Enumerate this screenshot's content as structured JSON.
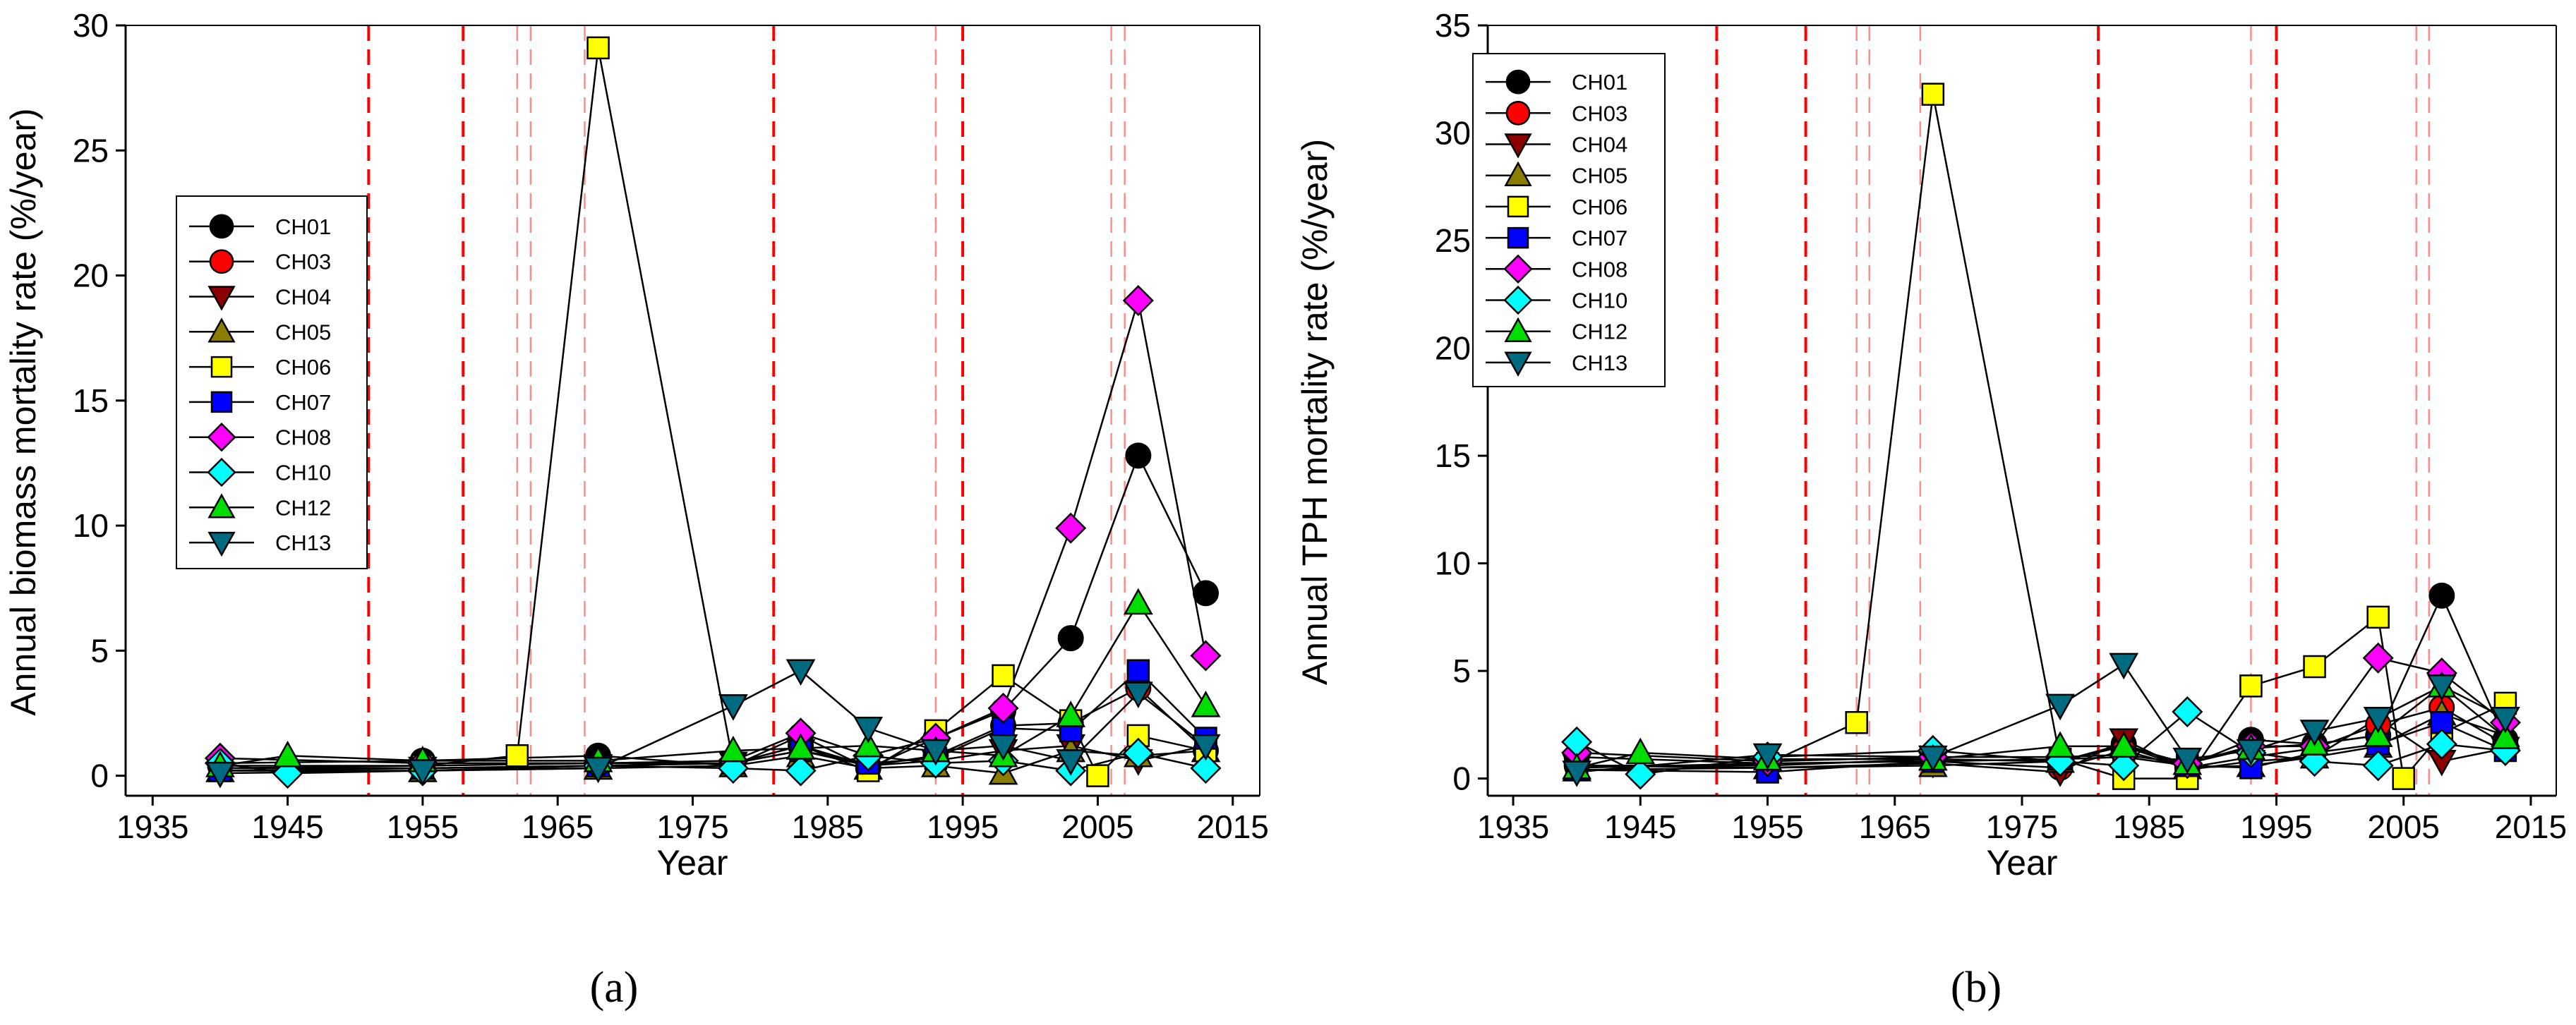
{
  "panel_labels": [
    "(a)",
    "(b)"
  ],
  "colors": {
    "CH01": "#000000",
    "CH03": "#ff0000",
    "CH04": "#8b0000",
    "CH05": "#8b7d00",
    "CH06": "#ffff00",
    "CH07": "#0000ff",
    "CH08": "#ff00ff",
    "CH10": "#00ffff",
    "CH12": "#00dd00",
    "CH13": "#006b80",
    "event_line": "#ff0000"
  },
  "markers": {
    "CH01": "circle",
    "CH03": "circle",
    "CH04": "triangle-down",
    "CH05": "triangle-up",
    "CH06": "square",
    "CH07": "square",
    "CH08": "diamond",
    "CH10": "diamond",
    "CH12": "triangle-up",
    "CH13": "triangle-down"
  },
  "chart_data": [
    {
      "type": "line",
      "title": "",
      "xlabel": "Year",
      "ylabel": "Annual biomass mortality rate (%/year)",
      "xlim": [
        1933,
        2017
      ],
      "ylim": [
        -0.8,
        30
      ],
      "xticks": [
        1935,
        1945,
        1955,
        1965,
        1975,
        1985,
        1995,
        2005,
        2015
      ],
      "yticks": [
        0,
        5,
        10,
        15,
        20,
        25,
        30
      ],
      "legend_position": "left",
      "grid": false,
      "vertical_lines": [
        {
          "x": 1951,
          "style": "dark"
        },
        {
          "x": 1958,
          "style": "dark"
        },
        {
          "x": 1962,
          "style": "light"
        },
        {
          "x": 1963,
          "style": "light"
        },
        {
          "x": 1967,
          "style": "light"
        },
        {
          "x": 1981,
          "style": "dark"
        },
        {
          "x": 1993,
          "style": "light"
        },
        {
          "x": 1995,
          "style": "dark"
        },
        {
          "x": 2006,
          "style": "light"
        },
        {
          "x": 2007,
          "style": "light"
        }
      ],
      "series": [
        {
          "name": "CH01",
          "x": [
            1940,
            1955,
            1968,
            1978,
            1983,
            1988,
            1993,
            1998,
            2003,
            2008,
            2013
          ],
          "y": [
            0.5,
            0.6,
            0.8,
            0.4,
            1.6,
            0.3,
            1.5,
            2.6,
            5.5,
            12.8,
            7.3
          ]
        },
        {
          "name": "CH03",
          "x": [
            1940,
            1955,
            1968,
            1978,
            1983,
            1988,
            1993,
            1998,
            2003,
            2008,
            2013
          ],
          "y": [
            0.4,
            0.4,
            0.5,
            0.5,
            1.2,
            0.4,
            0.8,
            2.0,
            2.1,
            3.5,
            1.0
          ]
        },
        {
          "name": "CH04",
          "x": [
            1940,
            1955,
            1968,
            1978,
            1983,
            1988,
            1993,
            1998,
            2003,
            2008,
            2013
          ],
          "y": [
            0.3,
            0.3,
            0.4,
            0.5,
            1.0,
            0.4,
            0.6,
            1.0,
            1.2,
            0.6,
            1.2
          ]
        },
        {
          "name": "CH05",
          "x": [
            1940,
            1955,
            1968,
            1978,
            1983,
            1988,
            1993,
            1998,
            2003,
            2008,
            2013
          ],
          "y": [
            0.2,
            0.2,
            0.3,
            0.4,
            0.8,
            0.3,
            0.4,
            0.1,
            1.0,
            0.8,
            1.0
          ]
        },
        {
          "name": "CH06",
          "x": [
            1940,
            1955,
            1962,
            1968,
            1978,
            1983,
            1988,
            1993,
            1998,
            2003,
            2005,
            2008,
            2013
          ],
          "y": [
            0.3,
            0.4,
            0.8,
            29.1,
            0.5,
            1.2,
            0.2,
            1.8,
            4.0,
            2.2,
            0.0,
            1.6,
            1.0
          ]
        },
        {
          "name": "CH07",
          "x": [
            1940,
            1955,
            1968,
            1978,
            1983,
            1988,
            1993,
            1998,
            2003,
            2008,
            2013
          ],
          "y": [
            0.2,
            0.3,
            0.4,
            0.5,
            1.0,
            0.5,
            0.7,
            1.9,
            1.8,
            4.2,
            1.5
          ]
        },
        {
          "name": "CH08",
          "x": [
            1940,
            1955,
            1968,
            1978,
            1983,
            1988,
            1993,
            1998,
            2003,
            2008,
            2013
          ],
          "y": [
            0.7,
            0.5,
            0.5,
            0.6,
            1.7,
            0.8,
            1.5,
            2.7,
            9.9,
            19.0,
            4.8
          ]
        },
        {
          "name": "CH10",
          "x": [
            1940,
            1945,
            1955,
            1968,
            1978,
            1983,
            1988,
            1993,
            1998,
            2003,
            2008,
            2013
          ],
          "y": [
            0.5,
            0.1,
            0.2,
            0.4,
            0.3,
            0.2,
            0.8,
            0.5,
            0.6,
            0.2,
            0.9,
            0.3
          ]
        },
        {
          "name": "CH12",
          "x": [
            1940,
            1945,
            1955,
            1968,
            1978,
            1983,
            1988,
            1993,
            1998,
            2003,
            2008,
            2013
          ],
          "y": [
            0.4,
            0.8,
            0.6,
            0.6,
            1.0,
            1.1,
            1.2,
            1.0,
            0.8,
            2.4,
            6.9,
            2.8
          ]
        },
        {
          "name": "CH13",
          "x": [
            1940,
            1955,
            1968,
            1978,
            1983,
            1988,
            1993,
            1998,
            2003,
            2008,
            2013
          ],
          "y": [
            0.1,
            0.2,
            0.3,
            2.8,
            4.2,
            1.9,
            1.0,
            1.2,
            0.6,
            3.3,
            1.2
          ]
        }
      ]
    },
    {
      "type": "line",
      "title": "",
      "xlabel": "Year",
      "ylabel": "Annual TPH mortality rate (%/year)",
      "xlim": [
        1933,
        2017
      ],
      "ylim": [
        -0.8,
        35
      ],
      "xticks": [
        1935,
        1945,
        1955,
        1965,
        1975,
        1985,
        1995,
        2005,
        2015
      ],
      "yticks": [
        0,
        5,
        10,
        15,
        20,
        25,
        30,
        35
      ],
      "legend_position": "top-left",
      "grid": false,
      "vertical_lines": [
        {
          "x": 1951,
          "style": "dark"
        },
        {
          "x": 1958,
          "style": "dark"
        },
        {
          "x": 1962,
          "style": "light"
        },
        {
          "x": 1963,
          "style": "light"
        },
        {
          "x": 1967,
          "style": "light"
        },
        {
          "x": 1981,
          "style": "dark"
        },
        {
          "x": 1993,
          "style": "light"
        },
        {
          "x": 1995,
          "style": "dark"
        },
        {
          "x": 2006,
          "style": "light"
        },
        {
          "x": 2007,
          "style": "light"
        }
      ],
      "series": [
        {
          "name": "CH01",
          "x": [
            1940,
            1955,
            1968,
            1978,
            1983,
            1988,
            1993,
            1998,
            2003,
            2008,
            2013
          ],
          "y": [
            0.6,
            0.6,
            0.9,
            0.8,
            1.6,
            0.6,
            1.8,
            1.6,
            2.0,
            8.5,
            1.8
          ]
        },
        {
          "name": "CH03",
          "x": [
            1940,
            1955,
            1968,
            1978,
            1983,
            1988,
            1993,
            1998,
            2003,
            2008,
            2013
          ],
          "y": [
            1.0,
            0.7,
            0.8,
            0.5,
            1.3,
            0.5,
            1.0,
            1.4,
            2.5,
            3.3,
            1.6
          ]
        },
        {
          "name": "CH04",
          "x": [
            1940,
            1955,
            1968,
            1978,
            1983,
            1988,
            1993,
            1998,
            2003,
            2008,
            2013
          ],
          "y": [
            0.6,
            0.5,
            0.7,
            0.3,
            1.8,
            0.4,
            0.8,
            1.0,
            2.8,
            0.8,
            1.4
          ]
        },
        {
          "name": "CH05",
          "x": [
            1940,
            1955,
            1968,
            1978,
            1983,
            1988,
            1993,
            1998,
            2003,
            2008,
            2013
          ],
          "y": [
            0.4,
            0.5,
            0.6,
            0.8,
            1.5,
            0.5,
            0.6,
            1.0,
            1.5,
            3.0,
            2.0
          ]
        },
        {
          "name": "CH06",
          "x": [
            1940,
            1955,
            1962,
            1968,
            1978,
            1983,
            1988,
            1993,
            1998,
            2003,
            2005,
            2008,
            2013
          ],
          "y": [
            0.5,
            0.7,
            2.6,
            31.8,
            0.9,
            0.0,
            0.0,
            4.3,
            5.2,
            7.5,
            0.0,
            2.1,
            3.5
          ]
        },
        {
          "name": "CH07",
          "x": [
            1940,
            1955,
            1968,
            1978,
            1983,
            1988,
            1993,
            1998,
            2003,
            2008,
            2013
          ],
          "y": [
            0.4,
            0.3,
            0.8,
            0.9,
            1.0,
            0.6,
            0.5,
            1.2,
            1.6,
            2.6,
            1.3
          ]
        },
        {
          "name": "CH08",
          "x": [
            1940,
            1955,
            1968,
            1978,
            1983,
            1988,
            1993,
            1998,
            2003,
            2008,
            2013
          ],
          "y": [
            1.2,
            0.8,
            1.0,
            1.0,
            1.1,
            0.7,
            1.5,
            1.5,
            5.6,
            4.9,
            2.6
          ]
        },
        {
          "name": "CH10",
          "x": [
            1940,
            1945,
            1955,
            1968,
            1978,
            1983,
            1988,
            1993,
            1998,
            2003,
            2008,
            2013
          ],
          "y": [
            1.7,
            0.2,
            1.0,
            1.3,
            0.8,
            0.6,
            3.1,
            1.2,
            0.8,
            0.6,
            1.6,
            1.3
          ]
        },
        {
          "name": "CH12",
          "x": [
            1940,
            1945,
            1955,
            1968,
            1978,
            1983,
            1988,
            1993,
            1998,
            2003,
            2008,
            2013
          ],
          "y": [
            0.5,
            1.2,
            0.9,
            0.9,
            1.5,
            1.5,
            0.7,
            1.4,
            1.6,
            2.0,
            4.3,
            1.9
          ]
        },
        {
          "name": "CH13",
          "x": [
            1940,
            1955,
            1968,
            1978,
            1983,
            1988,
            1993,
            1998,
            2003,
            2008,
            2013
          ],
          "y": [
            0.3,
            1.1,
            1.0,
            3.4,
            5.3,
            0.9,
            1.3,
            2.2,
            2.8,
            4.3,
            2.8
          ]
        }
      ]
    }
  ]
}
